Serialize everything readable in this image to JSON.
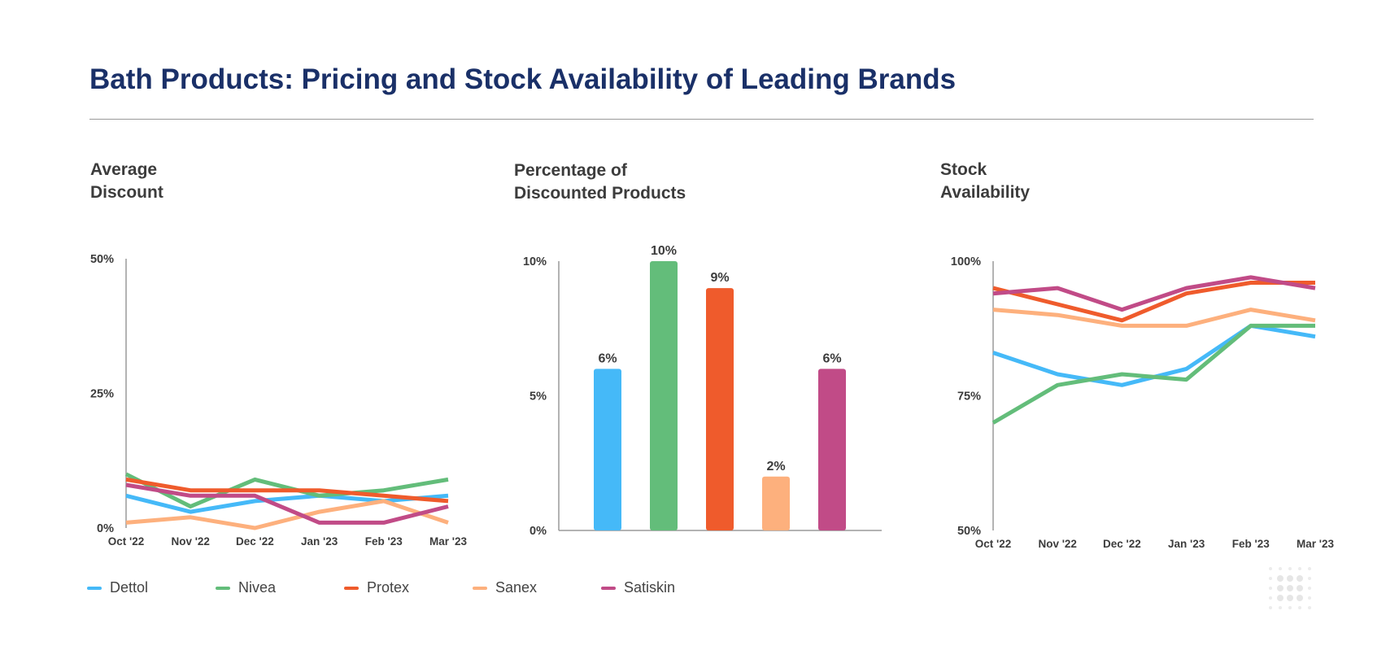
{
  "title": "Bath Products: Pricing and Stock Availability of Leading Brands",
  "colors": {
    "Dettol": "#45b9f8",
    "Nivea": "#63bd7a",
    "Protex": "#ef5b2c",
    "Sanex": "#fdb07d",
    "Satiskin": "#c14b87",
    "title": "#1a3068"
  },
  "legend": [
    "Dettol",
    "Nivea",
    "Protex",
    "Sanex",
    "Satiskin"
  ],
  "chart_data": [
    {
      "type": "line",
      "title_lines": [
        "Average",
        "Discount"
      ],
      "x": [
        "Oct '22",
        "Nov '22",
        "Dec '22",
        "Jan '23",
        "Feb '23",
        "Mar '23"
      ],
      "yticks": [
        "0%",
        "25%",
        "50%"
      ],
      "ylim": [
        0,
        50
      ],
      "series": [
        {
          "name": "Dettol",
          "values": [
            6,
            3,
            5,
            6,
            5,
            6
          ]
        },
        {
          "name": "Nivea",
          "values": [
            10,
            4,
            9,
            6,
            7,
            9
          ]
        },
        {
          "name": "Protex",
          "values": [
            9,
            7,
            7,
            7,
            6,
            5
          ]
        },
        {
          "name": "Sanex",
          "values": [
            1,
            2,
            0,
            3,
            5,
            1
          ]
        },
        {
          "name": "Satiskin",
          "values": [
            8,
            6,
            6,
            1,
            1,
            4
          ]
        }
      ]
    },
    {
      "type": "bar",
      "title_lines": [
        "Percentage of",
        "Discounted Products"
      ],
      "categories": [
        "Dettol",
        "Nivea",
        "Protex",
        "Sanex",
        "Satiskin"
      ],
      "values": [
        6,
        10,
        9,
        2,
        6
      ],
      "value_labels": [
        "6%",
        "10%",
        "9%",
        "2%",
        "6%"
      ],
      "yticks": [
        "0%",
        "5%",
        "10%"
      ],
      "ylim": [
        0,
        10
      ]
    },
    {
      "type": "line",
      "title_lines": [
        "Stock",
        "Availability"
      ],
      "x": [
        "Oct '22",
        "Nov '22",
        "Dec '22",
        "Jan '23",
        "Feb '23",
        "Mar '23"
      ],
      "yticks": [
        "50%",
        "75%",
        "100%"
      ],
      "ylim": [
        50,
        100
      ],
      "series": [
        {
          "name": "Dettol",
          "values": [
            83,
            79,
            77,
            80,
            88,
            86
          ]
        },
        {
          "name": "Nivea",
          "values": [
            70,
            77,
            79,
            78,
            88,
            88
          ]
        },
        {
          "name": "Protex",
          "values": [
            95,
            92,
            89,
            94,
            96,
            96
          ]
        },
        {
          "name": "Sanex",
          "values": [
            91,
            90,
            88,
            88,
            91,
            89
          ]
        },
        {
          "name": "Satiskin",
          "values": [
            94,
            95,
            91,
            95,
            97,
            95
          ]
        }
      ]
    }
  ]
}
